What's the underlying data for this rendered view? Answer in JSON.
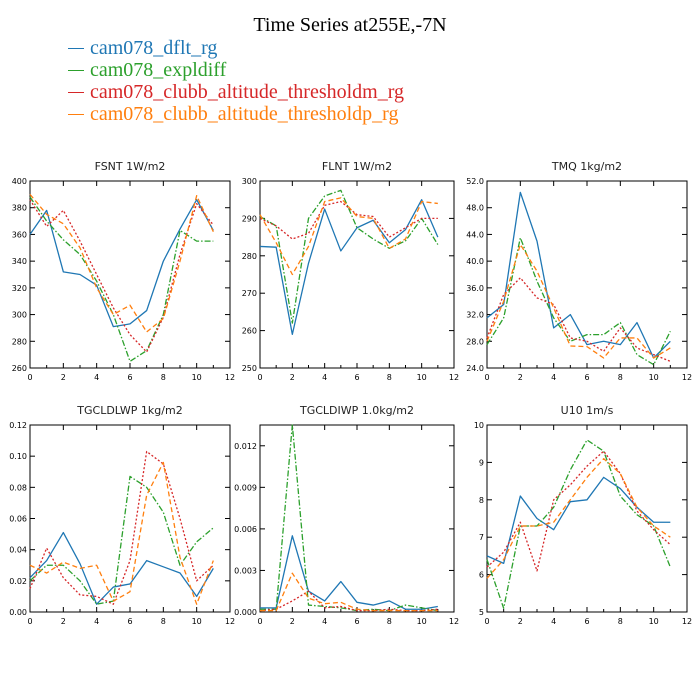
{
  "title": "Time Series at255E,-7N",
  "legend": [
    {
      "name": "cam078_dflt_rg",
      "color": "#1f77b4"
    },
    {
      "name": "cam078_expldiff",
      "color": "#2ca02c"
    },
    {
      "name": "cam078_clubb_altitude_thresholdm_rg",
      "color": "#d62728"
    },
    {
      "name": "cam078_clubb_altitude_thresholdp_rg",
      "color": "#ff7f0e"
    }
  ],
  "chart_data": [
    {
      "type": "line",
      "title": "FSNT   1W/m2",
      "x": [
        0,
        1,
        2,
        3,
        4,
        5,
        6,
        7,
        8,
        9,
        10,
        11
      ],
      "xlim": [
        0,
        12
      ],
      "ylim": [
        260,
        400
      ],
      "xticks": [
        "0",
        "2",
        "4",
        "6",
        "8",
        "10",
        "12"
      ],
      "yticks": [
        "260",
        "280",
        "300",
        "320",
        "340",
        "360",
        "380",
        "400"
      ],
      "series": [
        {
          "name": "cam078_dflt_rg",
          "color": "#1f77b4",
          "dash": "solid",
          "values": [
            360,
            378,
            332,
            330,
            322,
            291,
            293,
            303,
            340,
            364,
            386,
            363
          ]
        },
        {
          "name": "cam078_expldiff",
          "color": "#2ca02c",
          "dash": "dashdot",
          "values": [
            388,
            370,
            356,
            345,
            325,
            300,
            265,
            273,
            300,
            363,
            355,
            355
          ]
        },
        {
          "name": "cam078_clubb_altitude_thresholdm_rg",
          "color": "#d62728",
          "dash": "dotted",
          "values": [
            386,
            366,
            378,
            355,
            330,
            305,
            285,
            272,
            298,
            345,
            383,
            367
          ]
        },
        {
          "name": "cam078_clubb_altitude_thresholdp_rg",
          "color": "#ff7f0e",
          "dash": "dashed",
          "values": [
            390,
            375,
            368,
            350,
            320,
            300,
            307,
            287,
            297,
            340,
            389,
            362
          ]
        }
      ]
    },
    {
      "type": "line",
      "title": "FLNT   1W/m2",
      "x": [
        0,
        1,
        2,
        3,
        4,
        5,
        6,
        7,
        8,
        9,
        10,
        11
      ],
      "xlim": [
        0,
        12
      ],
      "ylim": [
        250,
        300
      ],
      "xticks": [
        "0",
        "2",
        "4",
        "6",
        "8",
        "10",
        "12"
      ],
      "yticks": [
        "250",
        "260",
        "270",
        "280",
        "290",
        "300"
      ],
      "series": [
        {
          "name": "cam078_dflt_rg",
          "color": "#1f77b4",
          "dash": "solid",
          "values": [
            282.5,
            282.3,
            259,
            278,
            292.5,
            281.3,
            287.5,
            289.5,
            283.5,
            287,
            295,
            285
          ]
        },
        {
          "name": "cam078_expldiff",
          "color": "#2ca02c",
          "dash": "dashdot",
          "values": [
            290.5,
            288,
            262,
            290,
            296,
            297.5,
            287.5,
            284.5,
            282,
            284,
            290,
            283
          ]
        },
        {
          "name": "cam078_clubb_altitude_thresholdm_rg",
          "color": "#d62728",
          "dash": "dotted",
          "values": [
            290,
            288,
            284.5,
            286,
            293.5,
            294.5,
            291,
            290.5,
            285,
            287.5,
            290,
            290
          ]
        },
        {
          "name": "cam078_clubb_altitude_thresholdp_rg",
          "color": "#ff7f0e",
          "dash": "dashed",
          "values": [
            291,
            283.5,
            275,
            282.5,
            294.5,
            295.5,
            290.5,
            290,
            282,
            284.5,
            294.5,
            294
          ]
        }
      ]
    },
    {
      "type": "line",
      "title": "TMQ   1kg/m2",
      "x": [
        0,
        1,
        2,
        3,
        4,
        5,
        6,
        7,
        8,
        9,
        10,
        11
      ],
      "xlim": [
        0,
        12
      ],
      "ylim": [
        24,
        52
      ],
      "xticks": [
        "0",
        "2",
        "4",
        "6",
        "8",
        "10",
        "12"
      ],
      "yticks": [
        "24.0",
        "28.0",
        "32.0",
        "36.0",
        "40.0",
        "44.0",
        "48.0",
        "52.0"
      ],
      "series": [
        {
          "name": "cam078_dflt_rg",
          "color": "#1f77b4",
          "dash": "solid",
          "values": [
            31.5,
            33.5,
            50.3,
            43,
            30,
            32,
            27.5,
            28,
            27.5,
            30.8,
            25.5,
            28
          ]
        },
        {
          "name": "cam078_expldiff",
          "color": "#2ca02c",
          "dash": "dashdot",
          "values": [
            27.5,
            31.5,
            43.5,
            37,
            31.5,
            28,
            29,
            29,
            30.8,
            26,
            24.5,
            29.5
          ]
        },
        {
          "name": "cam078_clubb_altitude_thresholdm_rg",
          "color": "#d62728",
          "dash": "dotted",
          "values": [
            28.5,
            35,
            37.5,
            34.5,
            33.5,
            28.5,
            28,
            26.5,
            30,
            27,
            26,
            25
          ]
        },
        {
          "name": "cam078_clubb_altitude_thresholdp_rg",
          "color": "#ff7f0e",
          "dash": "dashed",
          "values": [
            28,
            34,
            42.5,
            38.5,
            33,
            27.3,
            27.2,
            25.5,
            28.5,
            28.5,
            25.5,
            27
          ]
        }
      ]
    },
    {
      "type": "line",
      "title": "TGCLDLWP   1kg/m2",
      "x": [
        0,
        1,
        2,
        3,
        4,
        5,
        6,
        7,
        8,
        9,
        10,
        11
      ],
      "xlim": [
        0,
        12
      ],
      "ylim": [
        0,
        0.12
      ],
      "xticks": [
        "0",
        "2",
        "4",
        "6",
        "8",
        "10",
        "12"
      ],
      "yticks": [
        "0.00",
        "0.02",
        "0.04",
        "0.06",
        "0.08",
        "0.10",
        "0.12"
      ],
      "series": [
        {
          "name": "cam078_dflt_rg",
          "color": "#1f77b4",
          "dash": "solid",
          "values": [
            0.022,
            0.033,
            0.051,
            0.031,
            0.005,
            0.016,
            0.018,
            0.033,
            0.029,
            0.025,
            0.01,
            0.028
          ]
        },
        {
          "name": "cam078_expldiff",
          "color": "#2ca02c",
          "dash": "dashdot",
          "values": [
            0.02,
            0.03,
            0.03,
            0.02,
            0.005,
            0.007,
            0.087,
            0.08,
            0.064,
            0.03,
            0.045,
            0.054
          ]
        },
        {
          "name": "cam078_clubb_altitude_thresholdm_rg",
          "color": "#d62728",
          "dash": "dotted",
          "values": [
            0.015,
            0.041,
            0.022,
            0.011,
            0.01,
            0.005,
            0.033,
            0.103,
            0.095,
            0.06,
            0.02,
            0.03
          ]
        },
        {
          "name": "cam078_clubb_altitude_thresholdp_rg",
          "color": "#ff7f0e",
          "dash": "dashed",
          "values": [
            0.03,
            0.025,
            0.032,
            0.028,
            0.03,
            0.007,
            0.013,
            0.075,
            0.096,
            0.035,
            0.005,
            0.033
          ]
        }
      ]
    },
    {
      "type": "line",
      "title": "TGCLDIWP   1.0kg/m2",
      "x": [
        0,
        1,
        2,
        3,
        4,
        5,
        6,
        7,
        8,
        9,
        10,
        11
      ],
      "xlim": [
        0,
        12
      ],
      "ylim": [
        0,
        0.0135
      ],
      "xticks": [
        "0",
        "2",
        "4",
        "6",
        "8",
        "10",
        "12"
      ],
      "yticks": [
        "0.000",
        "0.003",
        "0.006",
        "0.009",
        "0.012"
      ],
      "series": [
        {
          "name": "cam078_dflt_rg",
          "color": "#1f77b4",
          "dash": "solid",
          "values": [
            0.0003,
            0.0003,
            0.0055,
            0.0015,
            0.0008,
            0.0022,
            0.0007,
            0.0005,
            0.0008,
            0.0002,
            0.0002,
            0.0004
          ]
        },
        {
          "name": "cam078_expldiff",
          "color": "#2ca02c",
          "dash": "dashdot",
          "values": [
            0.0002,
            0.0002,
            0.0135,
            0.0005,
            0.0004,
            0.0003,
            0.0001,
            0.0002,
            0.0001,
            0.0005,
            0.0003,
            0.0001
          ]
        },
        {
          "name": "cam078_clubb_altitude_thresholdm_rg",
          "color": "#d62728",
          "dash": "dotted",
          "values": [
            0.0001,
            0.0002,
            0.0008,
            0.0015,
            0.0003,
            0.0004,
            0.0001,
            0.0001,
            0.0002,
            0.0001,
            0.0001,
            0.0002
          ]
        },
        {
          "name": "cam078_clubb_altitude_thresholdp_rg",
          "color": "#ff7f0e",
          "dash": "dashed",
          "values": [
            0.0001,
            0.0001,
            0.0028,
            0.001,
            0.0006,
            0.0007,
            0.0002,
            0.0001,
            0.0001,
            0.0001,
            0.0001,
            0.0001
          ]
        }
      ]
    },
    {
      "type": "line",
      "title": "U10   1m/s",
      "x": [
        0,
        1,
        2,
        3,
        4,
        5,
        6,
        7,
        8,
        9,
        10,
        11
      ],
      "xlim": [
        0,
        12
      ],
      "ylim": [
        5,
        10
      ],
      "xticks": [
        "0",
        "2",
        "4",
        "6",
        "8",
        "10",
        "12"
      ],
      "yticks": [
        "5",
        "6",
        "7",
        "8",
        "9",
        "10"
      ],
      "series": [
        {
          "name": "cam078_dflt_rg",
          "color": "#1f77b4",
          "dash": "solid",
          "values": [
            6.5,
            6.3,
            8.1,
            7.5,
            7.2,
            7.95,
            8,
            8.6,
            8.3,
            7.8,
            7.4,
            7.4
          ]
        },
        {
          "name": "cam078_expldiff",
          "color": "#2ca02c",
          "dash": "dashdot",
          "values": [
            6.4,
            5.1,
            7.3,
            7.3,
            7.8,
            8.8,
            9.6,
            9.3,
            8.1,
            7.6,
            7.3,
            6.2
          ]
        },
        {
          "name": "cam078_clubb_altitude_thresholdm_rg",
          "color": "#d62728",
          "dash": "dotted",
          "values": [
            6.2,
            6.6,
            7.4,
            6.1,
            8,
            8.4,
            8.9,
            9.3,
            8.7,
            7.7,
            7.2,
            6.8
          ]
        },
        {
          "name": "cam078_clubb_altitude_thresholdp_rg",
          "color": "#ff7f0e",
          "dash": "dashed",
          "values": [
            5.9,
            6.4,
            7.3,
            7.3,
            7.4,
            8,
            8.6,
            9.1,
            8.7,
            7.8,
            7.3,
            7
          ]
        }
      ]
    }
  ]
}
